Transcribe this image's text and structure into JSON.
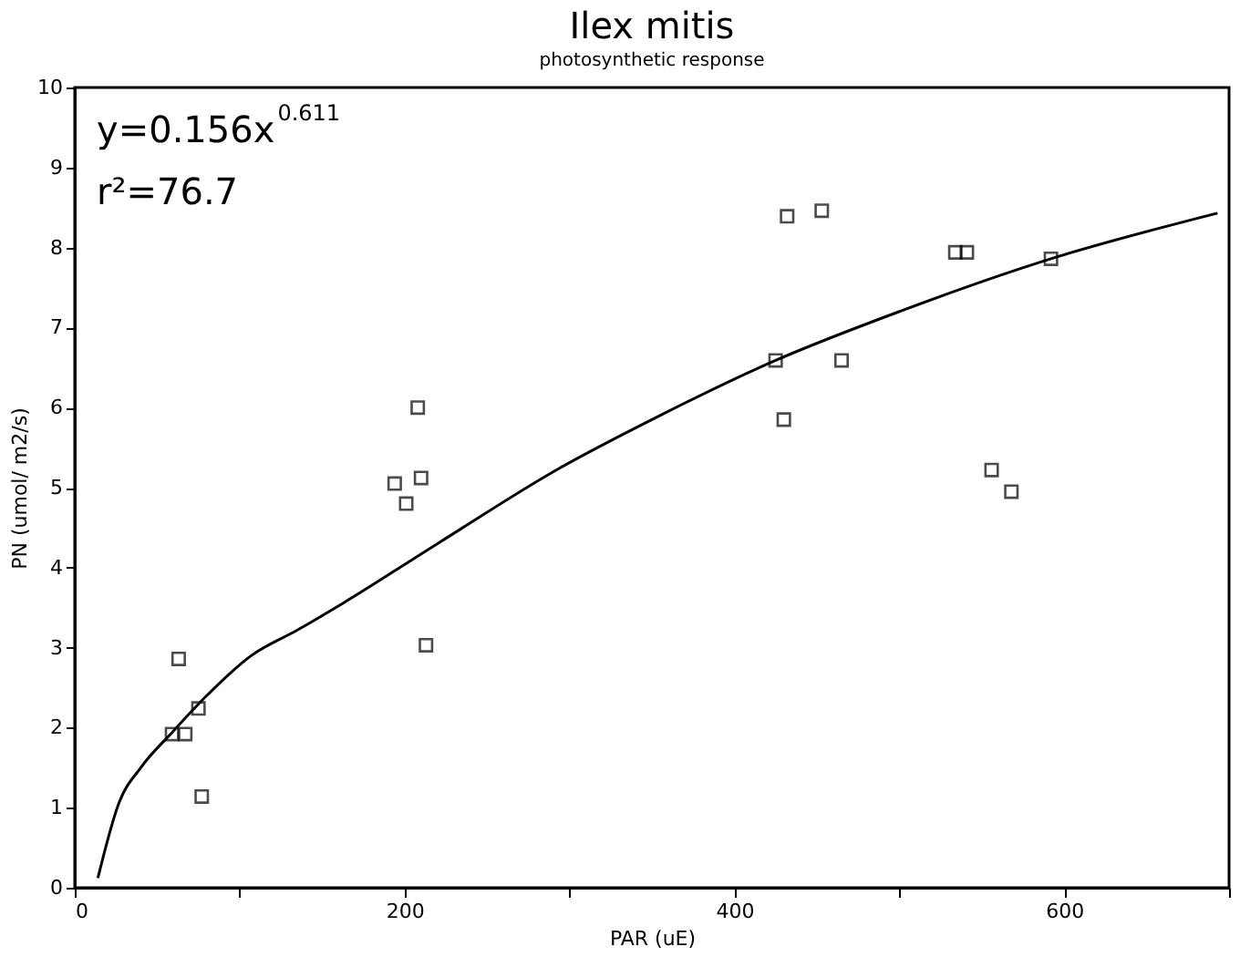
{
  "chart_data": {
    "type": "scatter",
    "title": "Ilex mitis",
    "subtitle": "photosynthetic response",
    "xlabel": "PAR (uE)",
    "ylabel": "PN (umol/ m2/s)",
    "annotations": [
      "y=0.156x$^{0.611}$",
      "r²=76.7"
    ],
    "series": [
      {
        "color": "#000000",
        "marker": "square",
        "x": [
          63,
          59,
          67,
          75,
          77,
          194,
          201,
          208,
          210,
          213,
          432,
          453,
          534,
          541,
          592,
          425,
          465,
          430,
          556,
          568
        ],
        "values": [
          2.86,
          1.92,
          1.92,
          2.24,
          1.14,
          5.05,
          4.8,
          6.0,
          5.12,
          3.03,
          8.39,
          8.46,
          7.94,
          7.94,
          7.86,
          6.59,
          6.59,
          5.85,
          5.22,
          4.95
        ]
      },
      {
        "type": "line",
        "color": "#000000",
        "marker": "none",
        "line_style": "solid",
        "x": [
          14,
          27,
          40,
          59,
          80,
          107,
          135,
          163,
          220,
          292,
          350,
          425,
          500,
          592,
          693
        ],
        "values": [
          0.12,
          1.07,
          1.5,
          1.94,
          2.4,
          2.9,
          3.22,
          3.56,
          4.3,
          5.22,
          5.85,
          6.59,
          7.2,
          7.86,
          8.43
        ]
      }
    ],
    "xlim": [
      0,
      700
    ],
    "xticks": [
      0,
      {
        "value": 100,
        "label": null
      },
      200,
      {
        "value": 300,
        "label": null
      },
      400,
      {
        "value": 500,
        "label": null
      },
      600,
      {
        "value": 700,
        "label": null
      }
    ],
    "ylim": [
      0,
      10
    ],
    "yticks": [
      0,
      1,
      2,
      3,
      4,
      5,
      6,
      7,
      8,
      9,
      10
    ],
    "grid": false
  }
}
